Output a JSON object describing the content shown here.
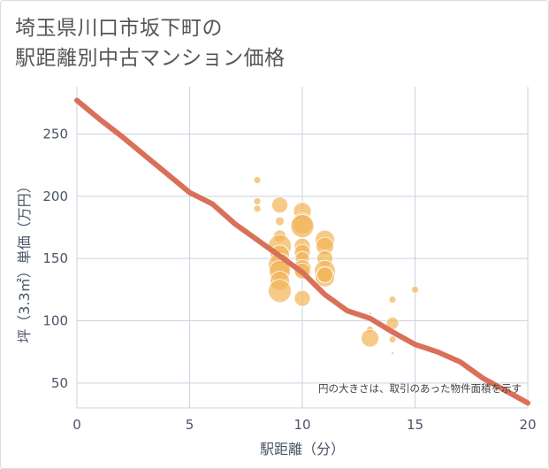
{
  "chart_data": {
    "type": "scatter",
    "title": [
      "埼玉県川口市坂下町の",
      "駅距離別中古マンション価格"
    ],
    "xlabel": "駅距離（分）",
    "ylabel": "坪（3.3㎡）単価（万円）",
    "xlim": [
      0,
      20
    ],
    "ylim": [
      30,
      288
    ],
    "xticks": [
      0,
      5,
      10,
      15,
      20
    ],
    "yticks": [
      50,
      100,
      150,
      200,
      250
    ],
    "note": "円の大きさは、取引のあった物件面積を示す",
    "colors": {
      "bubble": "#f2b65a",
      "trend": "#d9705a",
      "grid": "#c9d3df"
    },
    "bubbles": [
      {
        "x": 8,
        "y": 213,
        "s": 4
      },
      {
        "x": 8,
        "y": 196,
        "s": 4
      },
      {
        "x": 8,
        "y": 190,
        "s": 4
      },
      {
        "x": 9,
        "y": 193,
        "s": 9
      },
      {
        "x": 9,
        "y": 180,
        "s": 5
      },
      {
        "x": 9,
        "y": 168,
        "s": 7
      },
      {
        "x": 9,
        "y": 160,
        "s": 13
      },
      {
        "x": 9,
        "y": 153,
        "s": 11
      },
      {
        "x": 9,
        "y": 145,
        "s": 13
      },
      {
        "x": 9,
        "y": 140,
        "s": 12
      },
      {
        "x": 9,
        "y": 132,
        "s": 11
      },
      {
        "x": 9,
        "y": 124,
        "s": 13
      },
      {
        "x": 10,
        "y": 188,
        "s": 10
      },
      {
        "x": 10,
        "y": 178,
        "s": 12
      },
      {
        "x": 10,
        "y": 176,
        "s": 13
      },
      {
        "x": 10,
        "y": 160,
        "s": 9
      },
      {
        "x": 10,
        "y": 155,
        "s": 9
      },
      {
        "x": 10,
        "y": 150,
        "s": 8
      },
      {
        "x": 10,
        "y": 142,
        "s": 10
      },
      {
        "x": 10,
        "y": 140,
        "s": 9
      },
      {
        "x": 10,
        "y": 118,
        "s": 9
      },
      {
        "x": 11,
        "y": 165,
        "s": 11
      },
      {
        "x": 11,
        "y": 160,
        "s": 10
      },
      {
        "x": 11,
        "y": 150,
        "s": 9
      },
      {
        "x": 11,
        "y": 140,
        "s": 12
      },
      {
        "x": 11,
        "y": 135,
        "s": 11
      },
      {
        "x": 11,
        "y": 137,
        "s": 9
      },
      {
        "x": 13,
        "y": 106,
        "s": 1.5
      },
      {
        "x": 13,
        "y": 93,
        "s": 4
      },
      {
        "x": 13,
        "y": 86,
        "s": 10
      },
      {
        "x": 14,
        "y": 117,
        "s": 4
      },
      {
        "x": 14,
        "y": 98,
        "s": 7
      },
      {
        "x": 14,
        "y": 85,
        "s": 4
      },
      {
        "x": 14,
        "y": 74,
        "s": 1.5
      },
      {
        "x": 15,
        "y": 125,
        "s": 4
      }
    ],
    "trend": {
      "x": [
        0,
        1,
        2,
        3,
        4,
        5,
        6,
        7,
        8,
        9,
        10,
        11,
        12,
        13,
        14,
        15,
        16,
        17,
        18,
        19,
        20
      ],
      "y": [
        277,
        262,
        248,
        233,
        218,
        203,
        194,
        178,
        165,
        152,
        139,
        121,
        108,
        102,
        91,
        81,
        75,
        67,
        54,
        44,
        34
      ]
    }
  }
}
